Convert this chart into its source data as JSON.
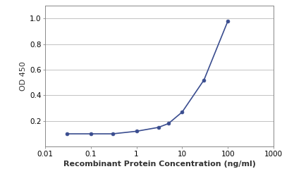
{
  "x": [
    0.03,
    0.1,
    0.3,
    1.0,
    3.0,
    5.0,
    10.0,
    30.0,
    100.0
  ],
  "y": [
    0.1,
    0.1,
    0.1,
    0.12,
    0.15,
    0.18,
    0.27,
    0.52,
    0.98
  ],
  "line_color": "#3A4D8F",
  "marker_color": "#3A4D8F",
  "marker_style": "o",
  "marker_size": 3.5,
  "line_width": 1.2,
  "xlabel": "Recombinant Protein Concentration (ng/ml)",
  "ylabel": "OD 450",
  "xlabel_fontsize": 8,
  "ylabel_fontsize": 8,
  "tick_fontsize": 7.5,
  "xlim": [
    0.01,
    1000
  ],
  "ylim": [
    0.0,
    1.1
  ],
  "yticks": [
    0.2,
    0.4,
    0.6,
    0.8,
    1.0
  ],
  "xtick_labels": [
    "0.01",
    "0.1",
    "1",
    "10",
    "100",
    "1000"
  ],
  "xtick_values": [
    0.01,
    0.1,
    1,
    10,
    100,
    1000
  ],
  "background_color": "#FFFFFF",
  "grid_color": "#AAAAAA",
  "grid_linewidth": 0.5,
  "fig_width": 4.0,
  "fig_height": 2.67,
  "fig_dpi": 100
}
